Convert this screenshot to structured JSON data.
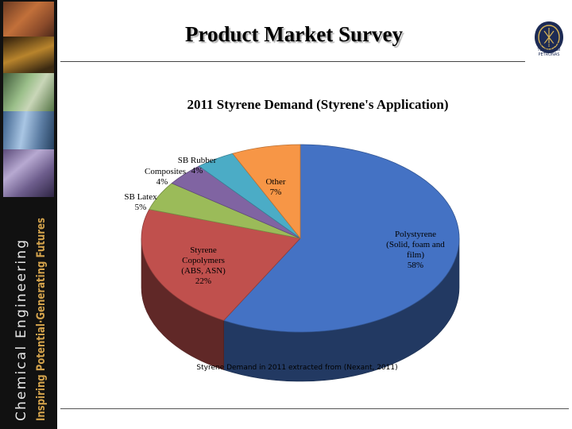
{
  "slide": {
    "title": "Product Market Survey"
  },
  "sidebar": {
    "line1": "Chemical Engineering",
    "line2": "Inspiring Potential·Generating Futures"
  },
  "logo": {
    "lines": [
      "UNIVERSITI",
      "TEKNOLOGI",
      "PETRONAS"
    ]
  },
  "chart_data": {
    "type": "pie",
    "title": "2011 Styrene Demand (Styrene's Application)",
    "slices": [
      {
        "label": "Polystyrene (Solid, foam and film)",
        "label_lines": [
          "Polystyrene",
          "(Solid, foam and",
          "film)",
          "58%"
        ],
        "value": 58,
        "color": "#4472c4"
      },
      {
        "label": "Styrene Copolymers (ABS, ASN)",
        "label_lines": [
          "Styrene",
          "Copolymers",
          "(ABS, ASN)",
          "22%"
        ],
        "value": 22,
        "color": "#c0504d"
      },
      {
        "label": "SB Latex",
        "label_lines": [
          "SB Latex",
          "5%"
        ],
        "value": 5,
        "color": "#9bbb59"
      },
      {
        "label": "Composites",
        "label_lines": [
          "Composites",
          "4%"
        ],
        "value": 4,
        "color": "#8064a2"
      },
      {
        "label": "SB Rubber",
        "label_lines": [
          "SB Rubber",
          "4%"
        ],
        "value": 4,
        "color": "#4bacc6"
      },
      {
        "label": "Other",
        "label_lines": [
          "Other",
          "7%"
        ],
        "value": 7,
        "color": "#f79646"
      }
    ],
    "caption": "Styrene Demand in 2011 extracted from (Nexant, 2011)",
    "three_d": true
  }
}
